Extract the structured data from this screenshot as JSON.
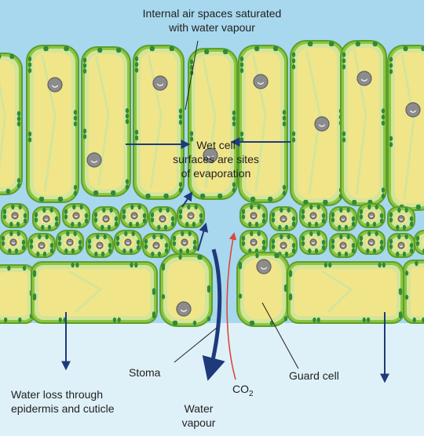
{
  "labels": {
    "air_spaces_line1": "Internal air spaces saturated",
    "air_spaces_line2": "with water vapour",
    "wet_line1": "Wet cell",
    "wet_line2": "surfaces are sites",
    "wet_line3": "of evaporation",
    "stoma": "Stoma",
    "guard_cell": "Guard cell",
    "water_loss_line1": "Water loss through",
    "water_loss_line2": "epidermis and cuticle",
    "co2_main": "CO",
    "co2_sub": "2",
    "water_vapour_line1": "Water",
    "water_vapour_line2": "vapour"
  },
  "colors": {
    "sky": "#a8d8ee",
    "cell_wall": "#8cc63f",
    "cell_rim": "#5c9e2e",
    "cytoplasm": "#d3e59a",
    "vacuole": "#f1e58a",
    "chloroplast": "#2f8a3a",
    "nucleus": "#8c8c8c",
    "arrow_navy": "#1f3a7a",
    "arrow_red": "#d9493c"
  }
}
